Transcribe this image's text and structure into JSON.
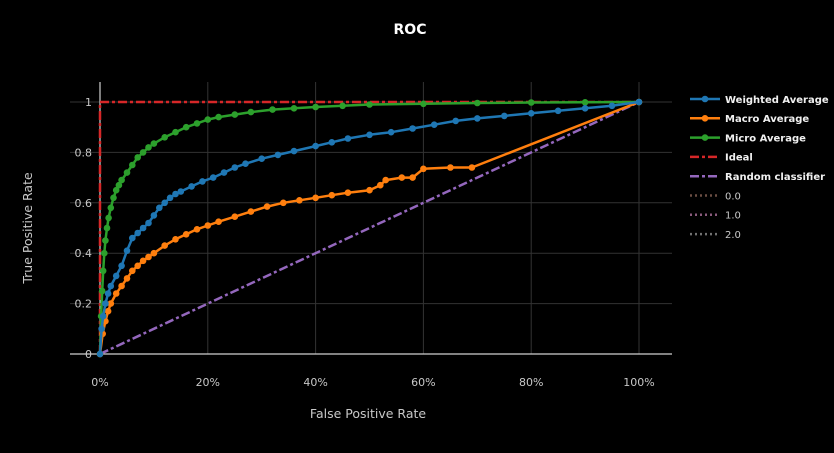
{
  "chart_data": {
    "type": "line",
    "title": "ROC",
    "xlabel": "False Positive Rate",
    "ylabel": "True Positive Rate",
    "xlim": [
      0,
      1
    ],
    "ylim": [
      0,
      1
    ],
    "grid": true,
    "legend_position": "right",
    "x_ticks": [
      {
        "value": 0,
        "label": "0%"
      },
      {
        "value": 0.2,
        "label": "20%"
      },
      {
        "value": 0.4,
        "label": "40%"
      },
      {
        "value": 0.6,
        "label": "60%"
      },
      {
        "value": 0.8,
        "label": "80%"
      },
      {
        "value": 1.0,
        "label": "100%"
      }
    ],
    "y_ticks": [
      {
        "value": 0,
        "label": "0"
      },
      {
        "value": 0.2,
        "label": "0.2"
      },
      {
        "value": 0.4,
        "label": "0.4"
      },
      {
        "value": 0.6,
        "label": "0.6"
      },
      {
        "value": 0.8,
        "label": "0.8"
      },
      {
        "value": 1.0,
        "label": "1"
      }
    ],
    "series": [
      {
        "name": "Weighted Average",
        "color": "#1f77b4",
        "style": "solid",
        "markers": true,
        "x": [
          0,
          0.003,
          0.006,
          0.01,
          0.015,
          0.02,
          0.03,
          0.04,
          0.05,
          0.06,
          0.07,
          0.08,
          0.09,
          0.1,
          0.11,
          0.12,
          0.13,
          0.14,
          0.15,
          0.17,
          0.19,
          0.21,
          0.23,
          0.25,
          0.27,
          0.3,
          0.33,
          0.36,
          0.4,
          0.43,
          0.46,
          0.5,
          0.54,
          0.58,
          0.62,
          0.66,
          0.7,
          0.75,
          0.8,
          0.85,
          0.9,
          0.95,
          1.0
        ],
        "y": [
          0,
          0.1,
          0.15,
          0.2,
          0.24,
          0.27,
          0.31,
          0.35,
          0.41,
          0.46,
          0.48,
          0.5,
          0.52,
          0.55,
          0.58,
          0.6,
          0.62,
          0.635,
          0.645,
          0.665,
          0.685,
          0.7,
          0.72,
          0.74,
          0.755,
          0.775,
          0.79,
          0.805,
          0.825,
          0.84,
          0.855,
          0.87,
          0.88,
          0.895,
          0.91,
          0.925,
          0.935,
          0.945,
          0.955,
          0.965,
          0.975,
          0.985,
          1.0
        ]
      },
      {
        "name": "Macro Average",
        "color": "#ff7f0e",
        "style": "solid",
        "markers": true,
        "x": [
          0,
          0.005,
          0.01,
          0.015,
          0.02,
          0.03,
          0.04,
          0.05,
          0.06,
          0.07,
          0.08,
          0.09,
          0.1,
          0.12,
          0.14,
          0.16,
          0.18,
          0.2,
          0.22,
          0.25,
          0.28,
          0.31,
          0.34,
          0.37,
          0.4,
          0.43,
          0.46,
          0.5,
          0.52,
          0.53,
          0.56,
          0.58,
          0.6,
          0.65,
          0.69,
          1.0
        ],
        "y": [
          0,
          0.08,
          0.13,
          0.17,
          0.2,
          0.24,
          0.27,
          0.3,
          0.33,
          0.35,
          0.37,
          0.385,
          0.4,
          0.43,
          0.455,
          0.475,
          0.495,
          0.51,
          0.525,
          0.545,
          0.565,
          0.585,
          0.6,
          0.61,
          0.62,
          0.63,
          0.64,
          0.65,
          0.67,
          0.69,
          0.7,
          0.7,
          0.735,
          0.74,
          0.74,
          1.0
        ]
      },
      {
        "name": "Micro Average",
        "color": "#2ca02c",
        "style": "solid",
        "markers": true,
        "x": [
          0,
          0.002,
          0.004,
          0.006,
          0.008,
          0.01,
          0.013,
          0.016,
          0.02,
          0.025,
          0.03,
          0.035,
          0.04,
          0.05,
          0.06,
          0.07,
          0.08,
          0.09,
          0.1,
          0.12,
          0.14,
          0.16,
          0.18,
          0.2,
          0.22,
          0.25,
          0.28,
          0.32,
          0.36,
          0.4,
          0.45,
          0.5,
          0.6,
          0.7,
          0.8,
          0.9,
          1.0
        ],
        "y": [
          0,
          0.15,
          0.25,
          0.33,
          0.4,
          0.45,
          0.5,
          0.54,
          0.58,
          0.62,
          0.65,
          0.67,
          0.69,
          0.72,
          0.75,
          0.78,
          0.8,
          0.82,
          0.835,
          0.86,
          0.88,
          0.9,
          0.915,
          0.93,
          0.94,
          0.95,
          0.96,
          0.97,
          0.975,
          0.98,
          0.985,
          0.99,
          0.993,
          0.996,
          0.998,
          0.999,
          1.0
        ]
      },
      {
        "name": "Ideal",
        "color": "#d62728",
        "style": "dashdot",
        "markers": false,
        "x": [
          0,
          0,
          1
        ],
        "y": [
          0,
          1,
          1
        ]
      },
      {
        "name": "Random classifier",
        "color": "#9467bd",
        "style": "dashdot",
        "markers": false,
        "x": [
          0,
          1
        ],
        "y": [
          0,
          1
        ]
      },
      {
        "name": "0.0",
        "color": "#6b4e43",
        "style": "dotted",
        "markers": false,
        "legend_only": true,
        "x": [],
        "y": []
      },
      {
        "name": "1.0",
        "color": "#8a5a7c",
        "style": "dotted",
        "markers": false,
        "legend_only": true,
        "x": [],
        "y": []
      },
      {
        "name": "2.0",
        "color": "#707070",
        "style": "dotted",
        "markers": false,
        "legend_only": true,
        "x": [],
        "y": []
      }
    ]
  }
}
